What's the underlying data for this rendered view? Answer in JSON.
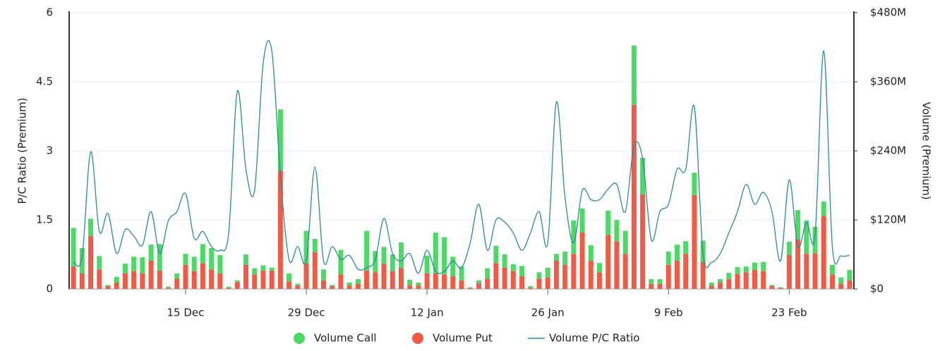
{
  "chart_data": {
    "type": "bar",
    "y_label": "P/C Ratio (Premium)",
    "y2_label": "Volume (Premium)",
    "categories": [
      null,
      null,
      null,
      null,
      null,
      null,
      null,
      null,
      null,
      null,
      null,
      null,
      null,
      "15 Dec",
      null,
      null,
      null,
      null,
      null,
      null,
      null,
      null,
      null,
      null,
      null,
      null,
      null,
      "29 Dec",
      null,
      null,
      null,
      null,
      null,
      null,
      null,
      null,
      null,
      null,
      null,
      null,
      null,
      "12 Jan",
      null,
      null,
      null,
      null,
      null,
      null,
      null,
      null,
      null,
      null,
      null,
      null,
      null,
      "26 Jan",
      null,
      null,
      null,
      null,
      null,
      null,
      null,
      null,
      null,
      null,
      null,
      null,
      null,
      "9 Feb",
      null,
      null,
      null,
      null,
      null,
      null,
      null,
      null,
      null,
      null,
      null,
      null,
      null,
      "23 Feb",
      null,
      null,
      null,
      null,
      null,
      null,
      null
    ],
    "series": [
      {
        "name": "Volume Call",
        "color": "#4cd964",
        "axis": "y2",
        "values": [
          67,
          44,
          30,
          23,
          2,
          10,
          17,
          25,
          28,
          28,
          46,
          2,
          9,
          19,
          25,
          33,
          37,
          32,
          2,
          3,
          18,
          11,
          9,
          5,
          106,
          14,
          3,
          56,
          23,
          19,
          2,
          43,
          5,
          8,
          69,
          37,
          29,
          29,
          45,
          9,
          5,
          31,
          71,
          65,
          34,
          24,
          1,
          5,
          18,
          30,
          23,
          12,
          18,
          3,
          11,
          17,
          12,
          23,
          58,
          42,
          27,
          16,
          42,
          37,
          40,
          103,
          64,
          8,
          8,
          23,
          28,
          22,
          39,
          37,
          5,
          6,
          11,
          12,
          10,
          13,
          16,
          2,
          1,
          23,
          51,
          58,
          46,
          25,
          17,
          11,
          18
        ]
      },
      {
        "name": "Volume Put",
        "color": "#f25a43",
        "axis": "y2",
        "values": [
          39,
          27,
          92,
          34,
          5,
          11,
          27,
          31,
          27,
          49,
          32,
          2,
          18,
          42,
          31,
          45,
          34,
          27,
          2,
          12,
          42,
          25,
          32,
          32,
          206,
          13,
          6,
          45,
          64,
          15,
          5,
          25,
          6,
          9,
          32,
          29,
          44,
          31,
          36,
          7,
          6,
          27,
          27,
          25,
          22,
          15,
          2,
          10,
          18,
          45,
          37,
          31,
          22,
          2,
          18,
          20,
          49,
          42,
          61,
          98,
          49,
          29,
          94,
          83,
          61,
          320,
          164,
          9,
          9,
          42,
          49,
          61,
          163,
          47,
          6,
          11,
          17,
          26,
          29,
          33,
          31,
          5,
          2,
          59,
          86,
          61,
          62,
          127,
          25,
          9,
          15
        ]
      },
      {
        "name": "Volume P/C Ratio",
        "color": "#2a8b9e",
        "type": "line",
        "values": [
          0.58,
          0.7,
          2.98,
          1.25,
          1.64,
          0.77,
          1.29,
          1.15,
          0.95,
          1.68,
          0.77,
          1.48,
          1.68,
          2.07,
          1.1,
          1.25,
          0.92,
          0.84,
          1.22,
          4.29,
          2.6,
          2.14,
          4.9,
          5.17,
          2.45,
          0.64,
          0.92,
          0.61,
          2.65,
          0.61,
          0.92,
          0.64,
          0.73,
          0.43,
          0.46,
          0.64,
          1.53,
          0.77,
          0.61,
          0.77,
          0.34,
          0.84,
          0.38,
          0.38,
          0.61,
          0.46,
          1.0,
          1.84,
          0.84,
          1.5,
          1.45,
          1.22,
          0.84,
          1.22,
          1.68,
          1.0,
          4.06,
          1.99,
          1.0,
          2.14,
          1.94,
          1.94,
          2.17,
          2.27,
          1.68,
          3.11,
          2.83,
          1.07,
          1.68,
          1.84,
          2.6,
          2.6,
          3.95,
          0.77,
          0.58,
          0.77,
          1.22,
          1.68,
          2.27,
          1.84,
          2.1,
          1.68,
          0.61,
          2.37,
          0.92,
          1.45,
          1.18,
          5.17,
          0.92,
          0.72,
          0.73
        ]
      }
    ],
    "ylim": [
      0,
      6
    ],
    "yticks": [
      0,
      1.5,
      3,
      4.5,
      6
    ],
    "y2lim": [
      0,
      480
    ],
    "y2ticks": [
      {
        "value": 0,
        "label": "$0"
      },
      {
        "value": 120,
        "label": "$120M"
      },
      {
        "value": 240,
        "label": "$240M"
      },
      {
        "value": 360,
        "label": "$360M"
      },
      {
        "value": 480,
        "label": "$480M"
      }
    ],
    "grid": true
  }
}
